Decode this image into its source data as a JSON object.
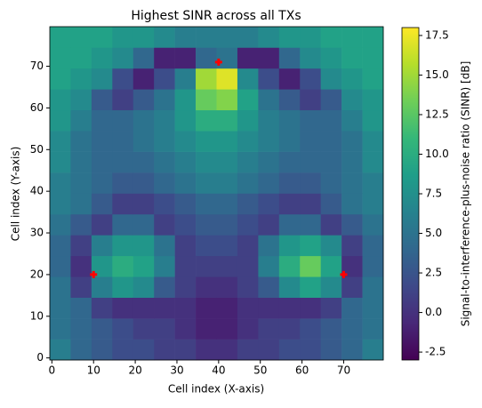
{
  "chart_data": {
    "type": "heatmap",
    "title": "Highest SINR across all TXs",
    "x_label": "Cell index (X-axis)",
    "y_label": "Cell index (Y-axis)",
    "colorbar_label": "Signal-to-interference-plus-noise ratio (SINR) [dB]",
    "colormap": "viridis",
    "xbins": [
      -0.5,
      4.5,
      9.5,
      14.5,
      19.5,
      24.5,
      29.5,
      34.5,
      39.5,
      44.5,
      49.5,
      54.5,
      59.5,
      64.5,
      69.5,
      74.5,
      79.5
    ],
    "ybins": [
      -0.5,
      4.5,
      9.5,
      14.5,
      19.5,
      24.5,
      29.5,
      34.5,
      39.5,
      44.5,
      49.5,
      54.5,
      59.5,
      64.5,
      69.5,
      74.5,
      79.5
    ],
    "values": [
      [
        6,
        4,
        3,
        2,
        2,
        1,
        1,
        0,
        0,
        1,
        1,
        2,
        2,
        3,
        4,
        6
      ],
      [
        5,
        4,
        3,
        2,
        1,
        1,
        0,
        -1,
        -1,
        0,
        1,
        1,
        2,
        3,
        4,
        5
      ],
      [
        5,
        4,
        1,
        0,
        0,
        0,
        0,
        -1,
        -1,
        0,
        0,
        0,
        0,
        1,
        4,
        5
      ],
      [
        5,
        1,
        6,
        8,
        7,
        3,
        1,
        0,
        0,
        1,
        3,
        7,
        9,
        7,
        1,
        5
      ],
      [
        4,
        0,
        8,
        10,
        9,
        6,
        1,
        1,
        1,
        1,
        6,
        10,
        13,
        9,
        0,
        4
      ],
      [
        4,
        1,
        6,
        8,
        8,
        5,
        1,
        2,
        2,
        1,
        5,
        8,
        9,
        7,
        1,
        4
      ],
      [
        5,
        3,
        1,
        4,
        4,
        1,
        2,
        3,
        3,
        2,
        1,
        4,
        4,
        1,
        3,
        5
      ],
      [
        6,
        5,
        3,
        1,
        1,
        2,
        3,
        4,
        4,
        3,
        2,
        1,
        1,
        3,
        5,
        6
      ],
      [
        6,
        5,
        4,
        3,
        3,
        4,
        5,
        6,
        6,
        5,
        4,
        3,
        3,
        4,
        5,
        6
      ],
      [
        7,
        5,
        4,
        4,
        4,
        5,
        6,
        7,
        7,
        6,
        5,
        4,
        4,
        4,
        5,
        7
      ],
      [
        7,
        5,
        4,
        4,
        5,
        6,
        7,
        8,
        8,
        7,
        6,
        5,
        4,
        4,
        5,
        7
      ],
      [
        8,
        6,
        4,
        4,
        5,
        6,
        8,
        10,
        10,
        8,
        6,
        5,
        4,
        4,
        6,
        8
      ],
      [
        8,
        7,
        3,
        1,
        3,
        5,
        8,
        13,
        14,
        9,
        5,
        3,
        1,
        3,
        7,
        8
      ],
      [
        9,
        8,
        7,
        2,
        -1,
        2,
        6,
        15,
        17,
        7,
        2,
        -1,
        2,
        7,
        8,
        9
      ],
      [
        9,
        9,
        8,
        7,
        4,
        -1,
        -1,
        4,
        5,
        -1,
        -1,
        4,
        7,
        8,
        9,
        9
      ],
      [
        9,
        9,
        9,
        8,
        8,
        7,
        6,
        6,
        6,
        6,
        7,
        8,
        8,
        9,
        9,
        9
      ]
    ],
    "xlim": [
      -0.5,
      79.5
    ],
    "ylim": [
      -0.5,
      79.5
    ],
    "xticks": [
      0,
      10,
      20,
      30,
      40,
      50,
      60,
      70
    ],
    "yticks": [
      0,
      10,
      20,
      30,
      40,
      50,
      60,
      70
    ],
    "clim": [
      -3,
      18
    ],
    "cticks": [
      {
        "value": -2.5,
        "label": "-2.5"
      },
      {
        "value": 0,
        "label": "0.0"
      },
      {
        "value": 2.5,
        "label": "2.5"
      },
      {
        "value": 5,
        "label": "5.0"
      },
      {
        "value": 7.5,
        "label": "7.5"
      },
      {
        "value": 10,
        "label": "10.0"
      },
      {
        "value": 12.5,
        "label": "12.5"
      },
      {
        "value": 15,
        "label": "15.0"
      },
      {
        "value": 17.5,
        "label": "17.5"
      }
    ],
    "markers": {
      "x": [
        10,
        40,
        70
      ],
      "y": [
        20,
        71,
        20
      ],
      "color": "#ff0000"
    }
  }
}
